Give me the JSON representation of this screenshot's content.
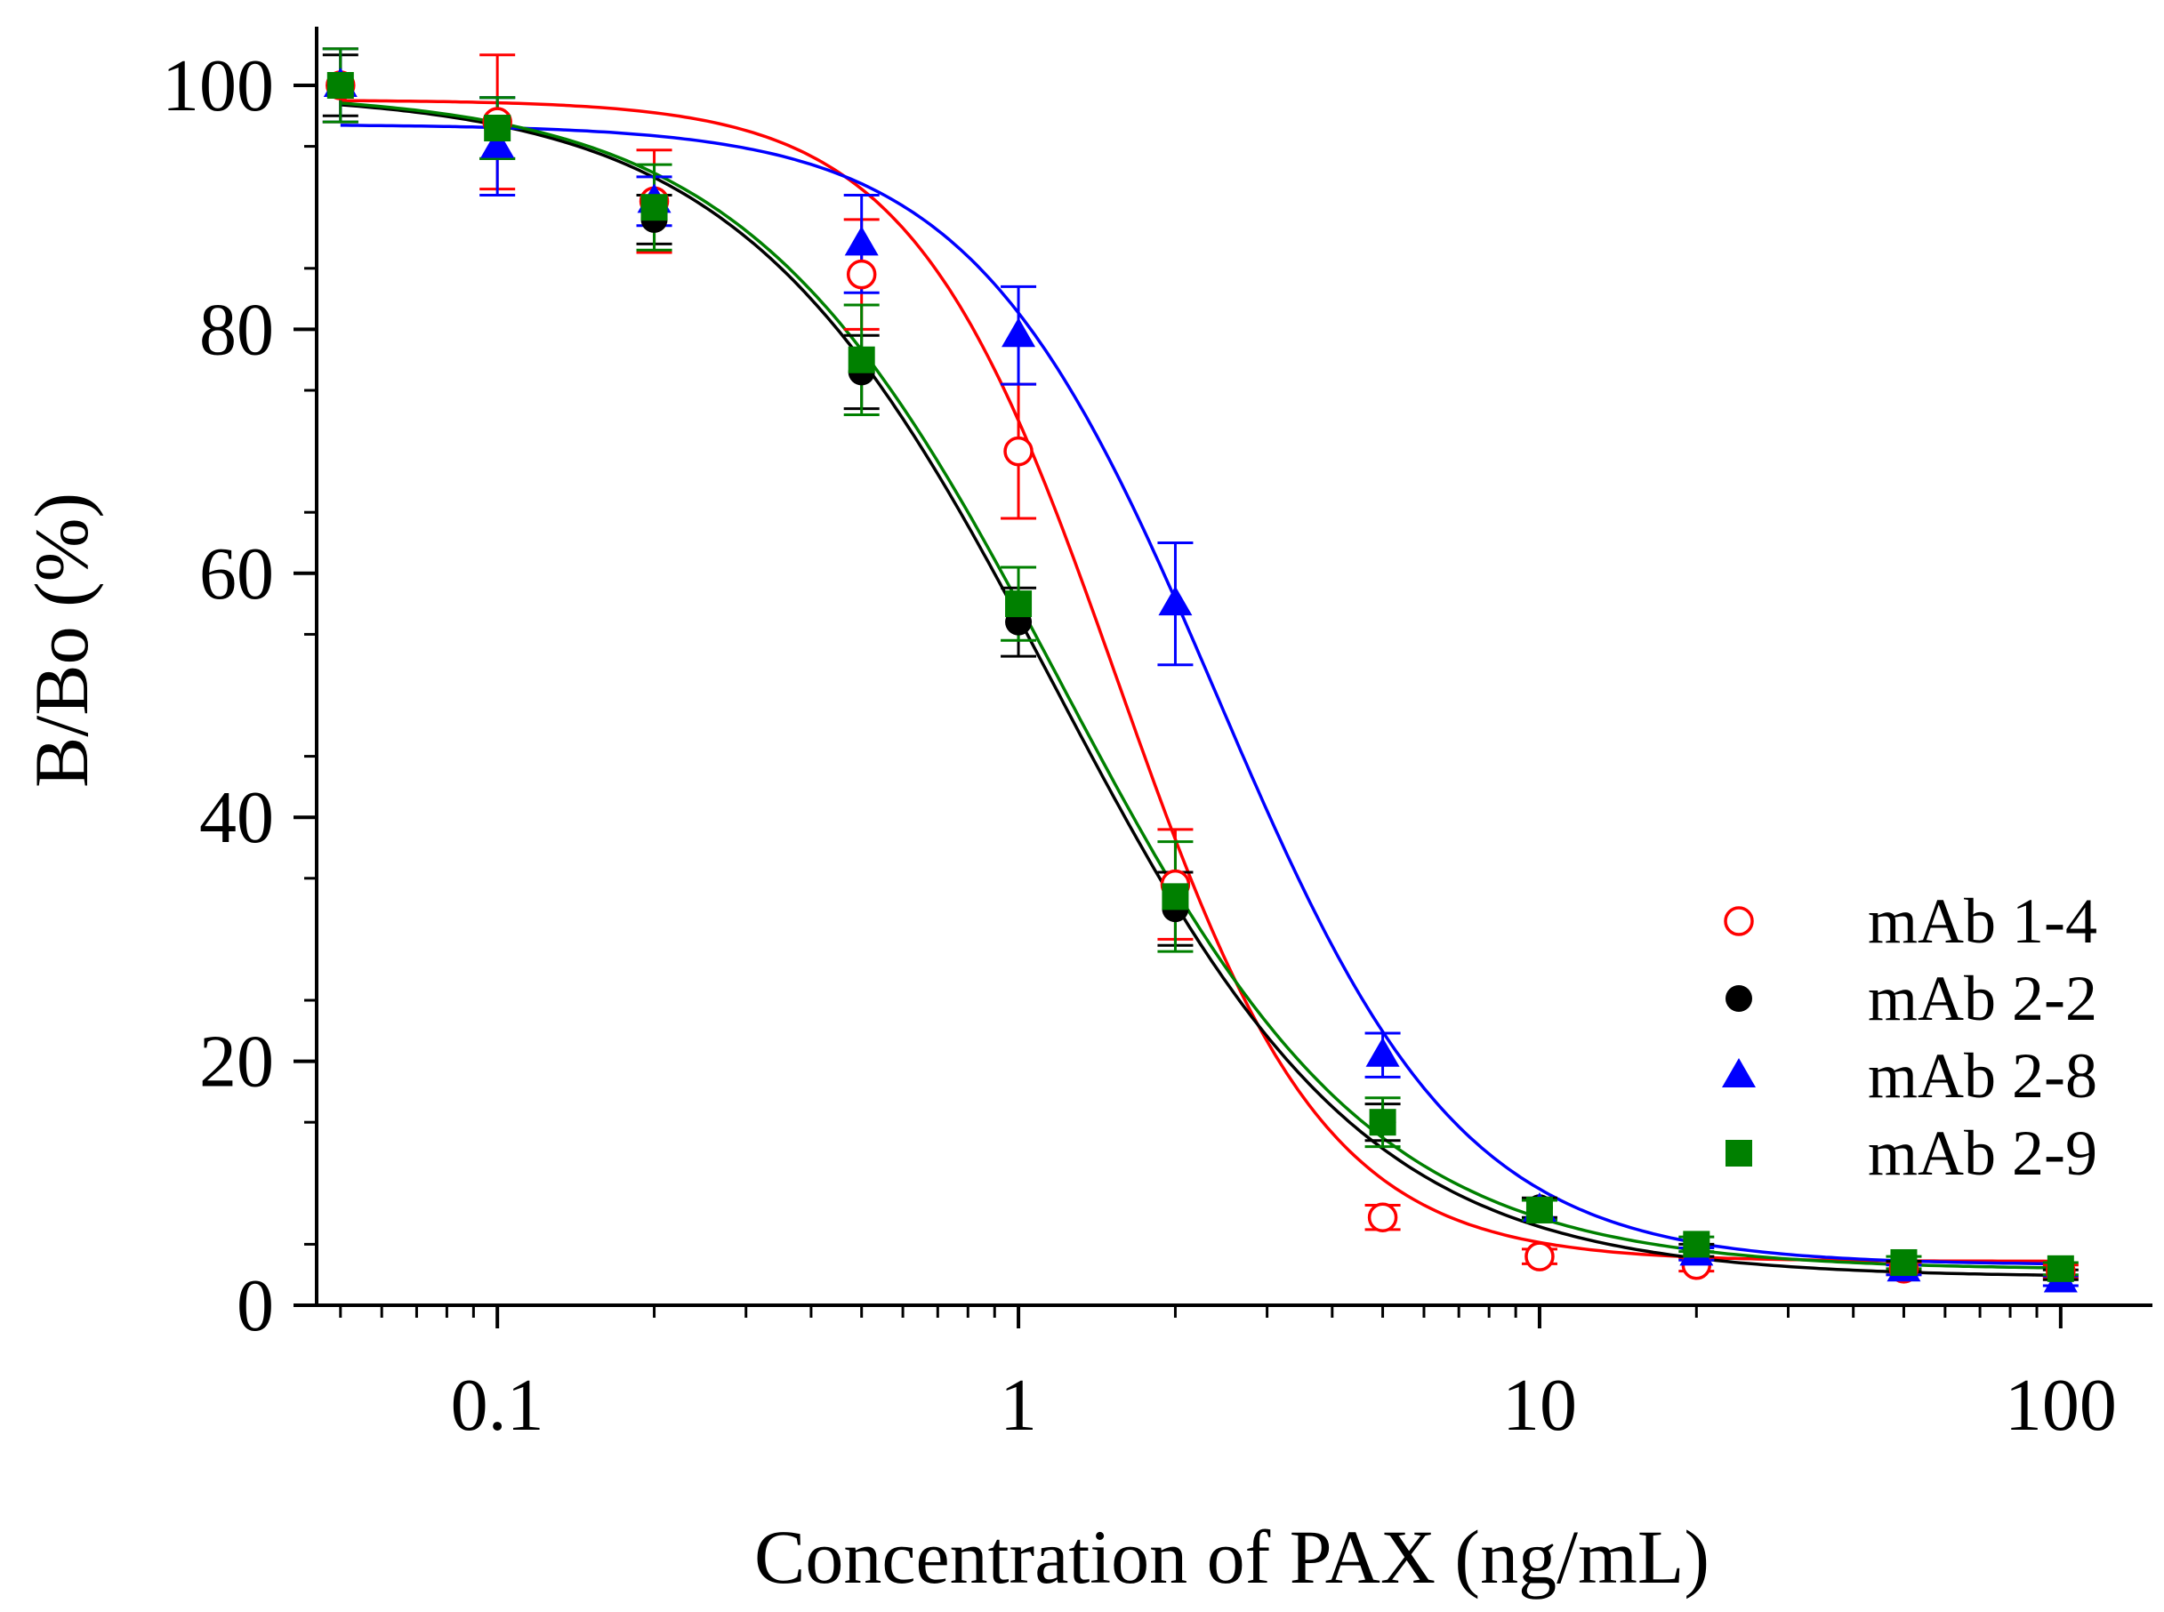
{
  "chart_data": {
    "type": "scatter",
    "title": "",
    "xlabel": "Concentration of PAX (ng/mL)",
    "ylabel": "B/Bo (%)",
    "xscale": "log",
    "xlim": [
      0.045,
      150
    ],
    "ylim": [
      0,
      105
    ],
    "x_ticks": [
      {
        "value": 0.1,
        "label": "0.1"
      },
      {
        "value": 1,
        "label": "1"
      },
      {
        "value": 10,
        "label": "10"
      },
      {
        "value": 100,
        "label": "100"
      }
    ],
    "y_ticks": [
      {
        "value": 0,
        "label": "0"
      },
      {
        "value": 20,
        "label": "20"
      },
      {
        "value": 40,
        "label": "40"
      },
      {
        "value": 60,
        "label": "60"
      },
      {
        "value": 80,
        "label": "80"
      },
      {
        "value": 100,
        "label": "100"
      }
    ],
    "grid": false,
    "legend_position": "right-middle",
    "x": [
      0.05,
      0.1,
      0.2,
      0.5,
      1,
      2,
      5,
      10,
      20,
      50,
      100
    ],
    "series": [
      {
        "name": "mAb 1-4",
        "color": "#ff0000",
        "marker": "open-circle",
        "values": [
          100.0,
          97.0,
          90.5,
          84.5,
          70.0,
          34.5,
          7.2,
          4.0,
          3.3,
          3.0,
          2.8
        ],
        "errors": [
          3.0,
          5.5,
          4.2,
          4.5,
          5.5,
          4.5,
          1.0,
          0.6,
          0.5,
          0.5,
          0.5
        ],
        "fit": {
          "top": 98.8,
          "bottom": 3.6,
          "ic50": 1.55,
          "hill": 2.2
        }
      },
      {
        "name": "mAb 2-2",
        "color": "#000000",
        "marker": "filled-circle",
        "values": [
          100.0,
          96.5,
          89.0,
          76.5,
          56.0,
          32.5,
          15.0,
          8.0,
          4.5,
          3.2,
          2.5
        ],
        "errors": [
          2.5,
          2.5,
          2.0,
          3.0,
          2.8,
          3.0,
          1.5,
          0.8,
          0.5,
          0.4,
          0.4
        ],
        "fit": {
          "top": 99.4,
          "bottom": 2.3,
          "ic50": 1.17,
          "hill": 1.45
        }
      },
      {
        "name": "mAb 2-8",
        "color": "#0000ff",
        "marker": "filled-triangle",
        "values": [
          100.0,
          95.0,
          90.5,
          87.0,
          79.5,
          57.5,
          20.5,
          7.8,
          4.2,
          2.9,
          2.0
        ],
        "errors": [
          3.0,
          4.0,
          2.0,
          4.0,
          4.0,
          5.0,
          1.8,
          0.8,
          0.5,
          0.4,
          0.4
        ],
        "fit": {
          "top": 96.8,
          "bottom": 3.3,
          "ic50": 2.4,
          "hill": 1.85
        }
      },
      {
        "name": "mAb 2-9",
        "color": "#008000",
        "marker": "filled-square",
        "values": [
          100.0,
          96.5,
          90.0,
          77.5,
          57.5,
          33.5,
          15.0,
          7.8,
          5.0,
          3.5,
          3.0
        ],
        "errors": [
          3.0,
          2.5,
          3.5,
          4.5,
          3.0,
          4.5,
          2.0,
          0.8,
          0.6,
          0.5,
          0.5
        ],
        "fit": {
          "top": 99.5,
          "bottom": 2.9,
          "ic50": 1.2,
          "hill": 1.45
        }
      }
    ]
  }
}
